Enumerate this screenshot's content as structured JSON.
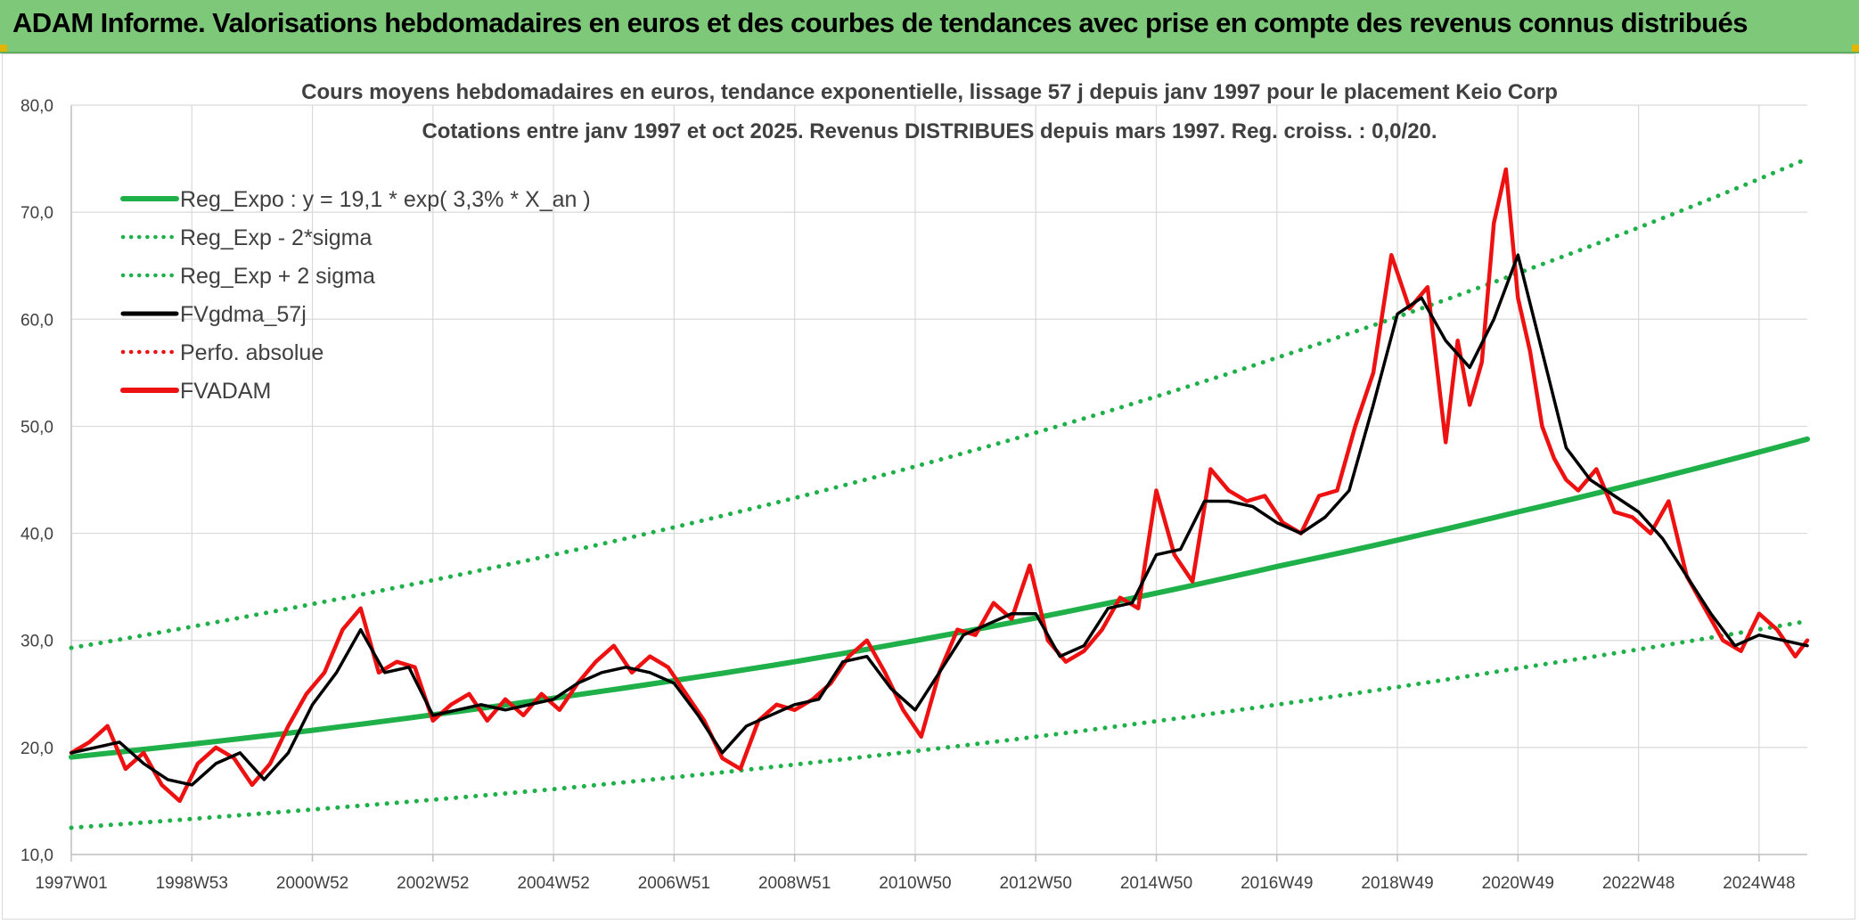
{
  "header": {
    "title": "ADAM Informe. Valorisations hebdomadaires en euros et des courbes de tendances avec prise en compte des revenus connus distribués"
  },
  "colors": {
    "banner": "#7ec87a",
    "reg_green": "#1fb04a",
    "black": "#000000",
    "red": "#ee1111",
    "grid": "#d9d9d9"
  },
  "chart_data": {
    "type": "line",
    "title": "Cours moyens hebdomadaires en euros, tendance exponentielle, lissage 57 j depuis janv 1997 pour le placement Keio Corp",
    "subtitle": "Cotations entre janv 1997 et oct 2025. Revenus DISTRIBUES depuis mars 1997. Reg. croiss. : 0,0/20.",
    "xlabel": "",
    "ylabel": "",
    "xlim": [
      1997.0,
      2025.8
    ],
    "ylim": [
      10,
      80
    ],
    "y_ticks": [
      "10,0",
      "20,0",
      "30,0",
      "40,0",
      "50,0",
      "60,0",
      "70,0",
      "80,0"
    ],
    "x_ticks": [
      {
        "label": "1997W01",
        "x": 1997.0
      },
      {
        "label": "1998W53",
        "x": 1999.0
      },
      {
        "label": "2000W52",
        "x": 2001.0
      },
      {
        "label": "2002W52",
        "x": 2003.0
      },
      {
        "label": "2004W52",
        "x": 2005.0
      },
      {
        "label": "2006W51",
        "x": 2007.0
      },
      {
        "label": "2008W51",
        "x": 2009.0
      },
      {
        "label": "2010W50",
        "x": 2011.0
      },
      {
        "label": "2012W50",
        "x": 2013.0
      },
      {
        "label": "2014W50",
        "x": 2015.0
      },
      {
        "label": "2016W49",
        "x": 2017.0
      },
      {
        "label": "2018W49",
        "x": 2019.0
      },
      {
        "label": "2020W49",
        "x": 2021.0
      },
      {
        "label": "2022W48",
        "x": 2023.0
      },
      {
        "label": "2024W48",
        "x": 2025.0
      }
    ],
    "grid": true,
    "legend_position": "top-left",
    "legend": [
      {
        "label": "Reg_Expo : y = 19,1 * exp( 3,3% *  X_an )",
        "color": "#1fb04a",
        "style": "solid-thick"
      },
      {
        "label": "Reg_Exp - 2*sigma",
        "color": "#1fb04a",
        "style": "dotted"
      },
      {
        "label": "Reg_Exp + 2 sigma",
        "color": "#1fb04a",
        "style": "dotted"
      },
      {
        "label": "FVgdma_57j",
        "color": "#000000",
        "style": "solid"
      },
      {
        "label": "Perfo. absolue",
        "color": "#ee1111",
        "style": "dotted"
      },
      {
        "label": "FVADAM",
        "color": "#ee1111",
        "style": "solid-thick"
      }
    ],
    "series": [
      {
        "name": "Reg_Expo",
        "x": [
          1997.0,
          2001.0,
          2005.0,
          2009.0,
          2013.0,
          2017.0,
          2021.0,
          2025.8
        ],
        "values": [
          19.1,
          21.6,
          24.6,
          28.0,
          32.1,
          36.9,
          42.0,
          48.8
        ]
      },
      {
        "name": "Reg_Exp - 2*sigma",
        "x": [
          1997.0,
          2001.0,
          2005.0,
          2009.0,
          2013.0,
          2017.0,
          2021.0,
          2025.8
        ],
        "values": [
          12.5,
          14.2,
          16.1,
          18.4,
          21.0,
          24.0,
          27.4,
          31.8
        ]
      },
      {
        "name": "Reg_Exp + 2 sigma",
        "x": [
          1997.0,
          2001.0,
          2005.0,
          2009.0,
          2013.0,
          2017.0,
          2021.0,
          2025.8
        ],
        "values": [
          29.3,
          33.4,
          38.0,
          43.3,
          49.4,
          56.4,
          64.3,
          75.0
        ]
      },
      {
        "name": "FVgdma_57j",
        "x": [
          1997.0,
          1997.4,
          1997.8,
          1998.2,
          1998.6,
          1999.0,
          1999.4,
          1999.8,
          2000.2,
          2000.6,
          2001.0,
          2001.4,
          2001.8,
          2002.2,
          2002.6,
          2003.0,
          2003.4,
          2003.8,
          2004.2,
          2004.6,
          2005.0,
          2005.4,
          2005.8,
          2006.2,
          2006.6,
          2007.0,
          2007.4,
          2007.8,
          2008.2,
          2008.6,
          2009.0,
          2009.4,
          2009.8,
          2010.2,
          2010.6,
          2011.0,
          2011.4,
          2011.8,
          2012.2,
          2012.6,
          2013.0,
          2013.4,
          2013.8,
          2014.2,
          2014.6,
          2015.0,
          2015.4,
          2015.8,
          2016.2,
          2016.6,
          2017.0,
          2017.4,
          2017.8,
          2018.2,
          2018.6,
          2019.0,
          2019.4,
          2019.8,
          2020.2,
          2020.6,
          2021.0,
          2021.4,
          2021.8,
          2022.2,
          2022.6,
          2023.0,
          2023.4,
          2023.8,
          2024.2,
          2024.6,
          2025.0,
          2025.4,
          2025.8
        ],
        "values": [
          19.5,
          20.0,
          20.5,
          18.5,
          17.0,
          16.5,
          18.5,
          19.5,
          17.0,
          19.5,
          24.0,
          27.0,
          31.0,
          27.0,
          27.5,
          23.0,
          23.5,
          24.0,
          23.5,
          24.0,
          24.5,
          26.0,
          27.0,
          27.5,
          27.0,
          26.0,
          23.0,
          19.5,
          22.0,
          23.0,
          24.0,
          24.5,
          28.0,
          28.5,
          25.5,
          23.5,
          27.0,
          30.5,
          31.5,
          32.5,
          32.5,
          28.5,
          29.5,
          33.0,
          33.5,
          38.0,
          38.5,
          43.0,
          43.0,
          42.5,
          41.0,
          40.0,
          41.5,
          44.0,
          52.0,
          60.5,
          62.0,
          58.0,
          55.5,
          60.0,
          66.0,
          57.0,
          48.0,
          45.0,
          43.5,
          42.0,
          39.5,
          36.0,
          32.5,
          29.5,
          30.5,
          30.0,
          29.5
        ]
      },
      {
        "name": "FVADAM",
        "x": [
          1997.0,
          1997.3,
          1997.6,
          1997.9,
          1998.2,
          1998.5,
          1998.8,
          1999.1,
          1999.4,
          1999.7,
          2000.0,
          2000.3,
          2000.6,
          2000.9,
          2001.2,
          2001.5,
          2001.8,
          2002.1,
          2002.4,
          2002.7,
          2003.0,
          2003.3,
          2003.6,
          2003.9,
          2004.2,
          2004.5,
          2004.8,
          2005.1,
          2005.4,
          2005.7,
          2006.0,
          2006.3,
          2006.6,
          2006.9,
          2007.2,
          2007.5,
          2007.8,
          2008.1,
          2008.4,
          2008.7,
          2009.0,
          2009.3,
          2009.6,
          2009.9,
          2010.2,
          2010.5,
          2010.8,
          2011.1,
          2011.4,
          2011.7,
          2012.0,
          2012.3,
          2012.6,
          2012.9,
          2013.2,
          2013.5,
          2013.8,
          2014.1,
          2014.4,
          2014.7,
          2015.0,
          2015.3,
          2015.6,
          2015.9,
          2016.2,
          2016.5,
          2016.8,
          2017.1,
          2017.4,
          2017.7,
          2018.0,
          2018.3,
          2018.6,
          2018.9,
          2019.2,
          2019.5,
          2019.8,
          2020.0,
          2020.2,
          2020.4,
          2020.6,
          2020.8,
          2021.0,
          2021.2,
          2021.4,
          2021.6,
          2021.8,
          2022.0,
          2022.3,
          2022.6,
          2022.9,
          2023.2,
          2023.5,
          2023.8,
          2024.1,
          2024.4,
          2024.7,
          2025.0,
          2025.3,
          2025.6,
          2025.8
        ],
        "values": [
          19.5,
          20.5,
          22.0,
          18.0,
          19.5,
          16.5,
          15.0,
          18.5,
          20.0,
          19.0,
          16.5,
          18.5,
          22.0,
          25.0,
          27.0,
          31.0,
          33.0,
          27.0,
          28.0,
          27.5,
          22.5,
          24.0,
          25.0,
          22.5,
          24.5,
          23.0,
          25.0,
          23.5,
          26.0,
          28.0,
          29.5,
          27.0,
          28.5,
          27.5,
          25.0,
          22.5,
          19.0,
          18.0,
          22.5,
          24.0,
          23.5,
          24.5,
          26.0,
          28.5,
          30.0,
          27.0,
          23.5,
          21.0,
          27.0,
          31.0,
          30.5,
          33.5,
          32.0,
          37.0,
          30.0,
          28.0,
          29.0,
          31.0,
          34.0,
          33.0,
          44.0,
          38.0,
          35.5,
          46.0,
          44.0,
          43.0,
          43.5,
          41.0,
          40.0,
          43.5,
          44.0,
          50.0,
          55.0,
          66.0,
          61.0,
          63.0,
          48.5,
          58.0,
          52.0,
          56.0,
          69.0,
          74.0,
          62.0,
          57.0,
          50.0,
          47.0,
          45.0,
          44.0,
          46.0,
          42.0,
          41.5,
          40.0,
          43.0,
          36.0,
          33.0,
          30.0,
          29.0,
          32.5,
          31.0,
          28.5,
          30.0
        ]
      }
    ]
  }
}
